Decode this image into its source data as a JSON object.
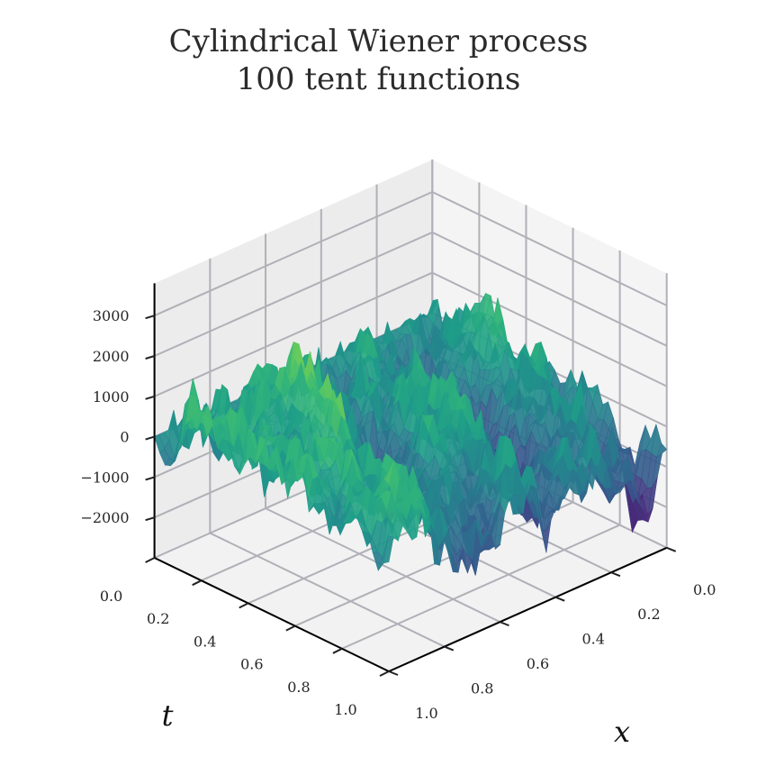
{
  "chart_data": {
    "type": "surface3d",
    "title": [
      "Cylindrical Wiener process",
      "100 tent functions"
    ],
    "xlabel": "x",
    "ylabel": "t",
    "zlabel": "",
    "x_ticks": [
      "0.0",
      "0.2",
      "0.4",
      "0.6",
      "0.8",
      "1.0"
    ],
    "t_ticks": [
      "0.0",
      "0.2",
      "0.4",
      "0.6",
      "0.8",
      "1.0"
    ],
    "z_ticks": [
      "3000",
      "2000",
      "1000",
      "0",
      "−1000",
      "−2000"
    ],
    "z_tick_values": [
      3000,
      2000,
      1000,
      0,
      -1000,
      -2000
    ],
    "xlim": [
      0,
      1
    ],
    "tlim": [
      0,
      1
    ],
    "zlim": [
      -3000,
      3800
    ],
    "colormap": "viridis",
    "grid": true,
    "surface_note": "random rough surface, zero along t=0, spreading to roughly ±2500 at t=1"
  }
}
